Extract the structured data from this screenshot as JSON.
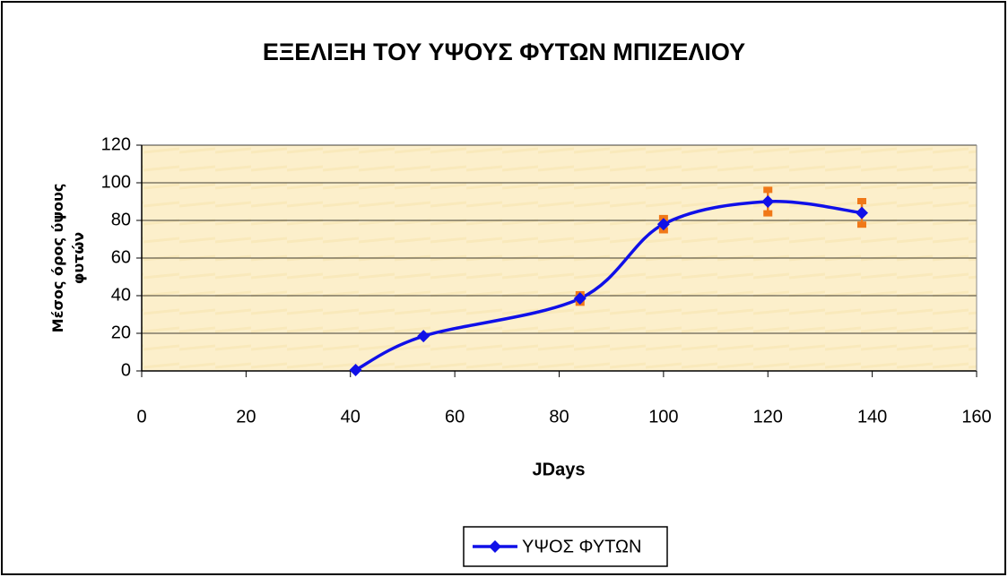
{
  "chart_data": {
    "type": "scatter",
    "title": "ΕΞΕΛΙΞΗ ΤΟΥ ΥΨΟΥΣ ΦΥΤΩΝ ΜΠΙΖΕΛΙΟΥ",
    "x_label": "JDays",
    "y_label": "Μέσος όρος ύψους φυτών",
    "series": [
      {
        "name": "ΥΨΟΣ ΦΥΤΩΝ",
        "color": "#1010e8",
        "x": [
          41,
          54,
          84,
          100,
          120,
          138
        ],
        "values": [
          0.5,
          18.5,
          38.5,
          78,
          90,
          84
        ],
        "errors": [
          0,
          0,
          2,
          3,
          6,
          6
        ],
        "error_color": "#f07818"
      }
    ],
    "xlim": [
      0,
      160
    ],
    "xticks": [
      0,
      20,
      40,
      60,
      80,
      100,
      120,
      140,
      160
    ],
    "ylim": [
      0,
      120
    ],
    "yticks": [
      0,
      20,
      40,
      60,
      80,
      100,
      120
    ],
    "grid": true,
    "legend": "bottom",
    "smooth": true
  }
}
